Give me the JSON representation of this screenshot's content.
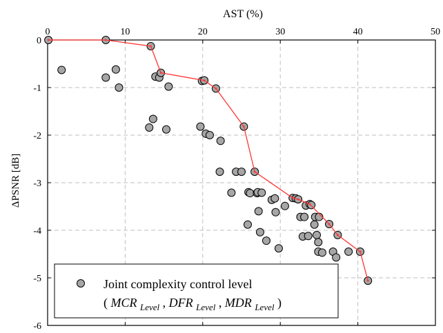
{
  "chart_data": {
    "type": "scatter",
    "x_axis": {
      "label": "AST (%)",
      "position": "top",
      "min": 0,
      "max": 50,
      "ticks": [
        "0",
        "10",
        "20",
        "30",
        "40",
        "50"
      ]
    },
    "y_axis": {
      "label": "ΔPSNR [dB]",
      "min": -6,
      "max": 0,
      "ticks": [
        "0",
        "-1",
        "-2",
        "-3",
        "-4",
        "-5",
        "-6"
      ]
    },
    "grid": "dashed",
    "legend": {
      "placement": "bottom-left",
      "line1": "Joint complexity control level",
      "open_paren": "(",
      "close_paren": ")",
      "sep": ", ",
      "terms": [
        {
          "base": "MCR",
          "sub": "Level"
        },
        {
          "base": "DFR",
          "sub": "Level"
        },
        {
          "base": "MDR",
          "sub": "Level"
        }
      ]
    },
    "series": [
      {
        "marker": "circle",
        "colors": {
          "fill": "#a6a6a6",
          "stroke": "#000000"
        },
        "points": [
          [
            0.1,
            0.0
          ],
          [
            1.8,
            -0.63
          ],
          [
            7.5,
            0.0
          ],
          [
            7.5,
            -0.79
          ],
          [
            8.8,
            -0.62
          ],
          [
            9.2,
            -1.0
          ],
          [
            13.1,
            -1.84
          ],
          [
            13.3,
            -0.13
          ],
          [
            13.6,
            -1.66
          ],
          [
            13.9,
            -0.77
          ],
          [
            14.4,
            -0.79
          ],
          [
            14.6,
            -0.69
          ],
          [
            15.3,
            -1.88
          ],
          [
            15.6,
            -0.98
          ],
          [
            19.7,
            -1.82
          ],
          [
            19.9,
            -0.86
          ],
          [
            20.2,
            -0.85
          ],
          [
            20.4,
            -1.97
          ],
          [
            20.9,
            -2.0
          ],
          [
            21.7,
            -1.02
          ],
          [
            22.2,
            -2.77
          ],
          [
            22.3,
            -2.12
          ],
          [
            23.7,
            -3.21
          ],
          [
            24.3,
            -2.77
          ],
          [
            25.0,
            -2.77
          ],
          [
            25.3,
            -1.82
          ],
          [
            25.8,
            -3.88
          ],
          [
            25.9,
            -3.2
          ],
          [
            26.1,
            -3.22
          ],
          [
            26.7,
            -2.77
          ],
          [
            27.0,
            -3.22
          ],
          [
            27.1,
            -3.2
          ],
          [
            27.2,
            -3.6
          ],
          [
            27.4,
            -4.04
          ],
          [
            27.6,
            -3.21
          ],
          [
            28.2,
            -4.22
          ],
          [
            28.9,
            -3.36
          ],
          [
            29.3,
            -3.33
          ],
          [
            29.4,
            -3.62
          ],
          [
            29.8,
            -4.38
          ],
          [
            30.6,
            -3.49
          ],
          [
            31.6,
            -3.32
          ],
          [
            32.0,
            -3.33
          ],
          [
            32.3,
            -3.35
          ],
          [
            32.6,
            -3.72
          ],
          [
            32.9,
            -4.13
          ],
          [
            33.1,
            -3.72
          ],
          [
            33.3,
            -3.48
          ],
          [
            33.6,
            -4.12
          ],
          [
            33.8,
            -3.45
          ],
          [
            34.0,
            -3.47
          ],
          [
            34.4,
            -3.88
          ],
          [
            34.5,
            -3.72
          ],
          [
            34.7,
            -4.1
          ],
          [
            34.9,
            -4.25
          ],
          [
            34.9,
            -4.45
          ],
          [
            35.0,
            -3.72
          ],
          [
            35.4,
            -4.47
          ],
          [
            36.3,
            -3.87
          ],
          [
            36.8,
            -4.45
          ],
          [
            37.2,
            -4.57
          ],
          [
            37.4,
            -4.1
          ],
          [
            38.8,
            -4.45
          ],
          [
            40.3,
            -4.45
          ],
          [
            41.3,
            -5.06
          ]
        ]
      },
      {
        "style": "line",
        "colors": {
          "stroke": "#ff3333"
        },
        "points": [
          [
            0.1,
            0.0
          ],
          [
            7.5,
            0.0
          ],
          [
            13.3,
            -0.13
          ],
          [
            14.6,
            -0.69
          ],
          [
            20.2,
            -0.85
          ],
          [
            21.7,
            -1.02
          ],
          [
            25.3,
            -1.82
          ],
          [
            26.7,
            -2.77
          ],
          [
            31.6,
            -3.32
          ],
          [
            32.3,
            -3.35
          ],
          [
            33.8,
            -3.45
          ],
          [
            36.3,
            -3.87
          ],
          [
            37.4,
            -4.1
          ],
          [
            40.3,
            -4.45
          ],
          [
            41.3,
            -5.06
          ]
        ]
      }
    ]
  }
}
